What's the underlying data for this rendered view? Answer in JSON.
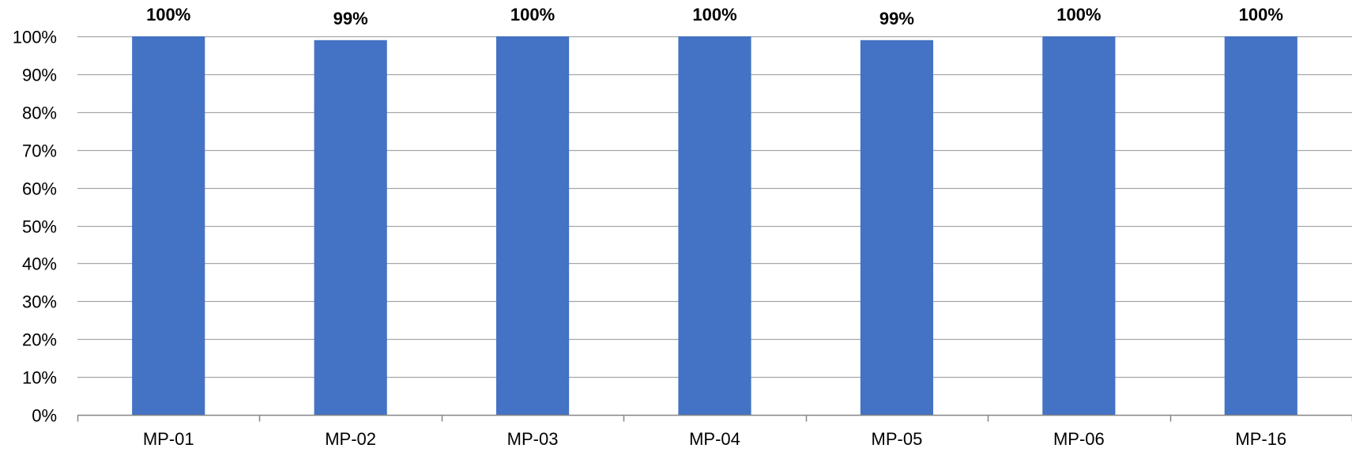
{
  "chart_data": {
    "type": "bar",
    "categories": [
      "MP-01",
      "MP-02",
      "MP-03",
      "MP-04",
      "MP-05",
      "MP-06",
      "MP-16"
    ],
    "values": [
      100,
      99,
      100,
      100,
      99,
      100,
      100
    ],
    "data_labels": [
      "100%",
      "99%",
      "100%",
      "100%",
      "99%",
      "100%",
      "100%"
    ],
    "title": "",
    "xlabel": "",
    "ylabel": "",
    "ylim": [
      0,
      100
    ],
    "yticks": [
      0,
      10,
      20,
      30,
      40,
      50,
      60,
      70,
      80,
      90,
      100
    ],
    "ytick_labels": [
      "0%",
      "10%",
      "20%",
      "30%",
      "40%",
      "50%",
      "60%",
      "70%",
      "80%",
      "90%",
      "100%"
    ],
    "grid": true,
    "legend": "none",
    "bar_color": "#4472C4",
    "grid_color": "#A6A6A6",
    "axis_color": "#868686"
  }
}
